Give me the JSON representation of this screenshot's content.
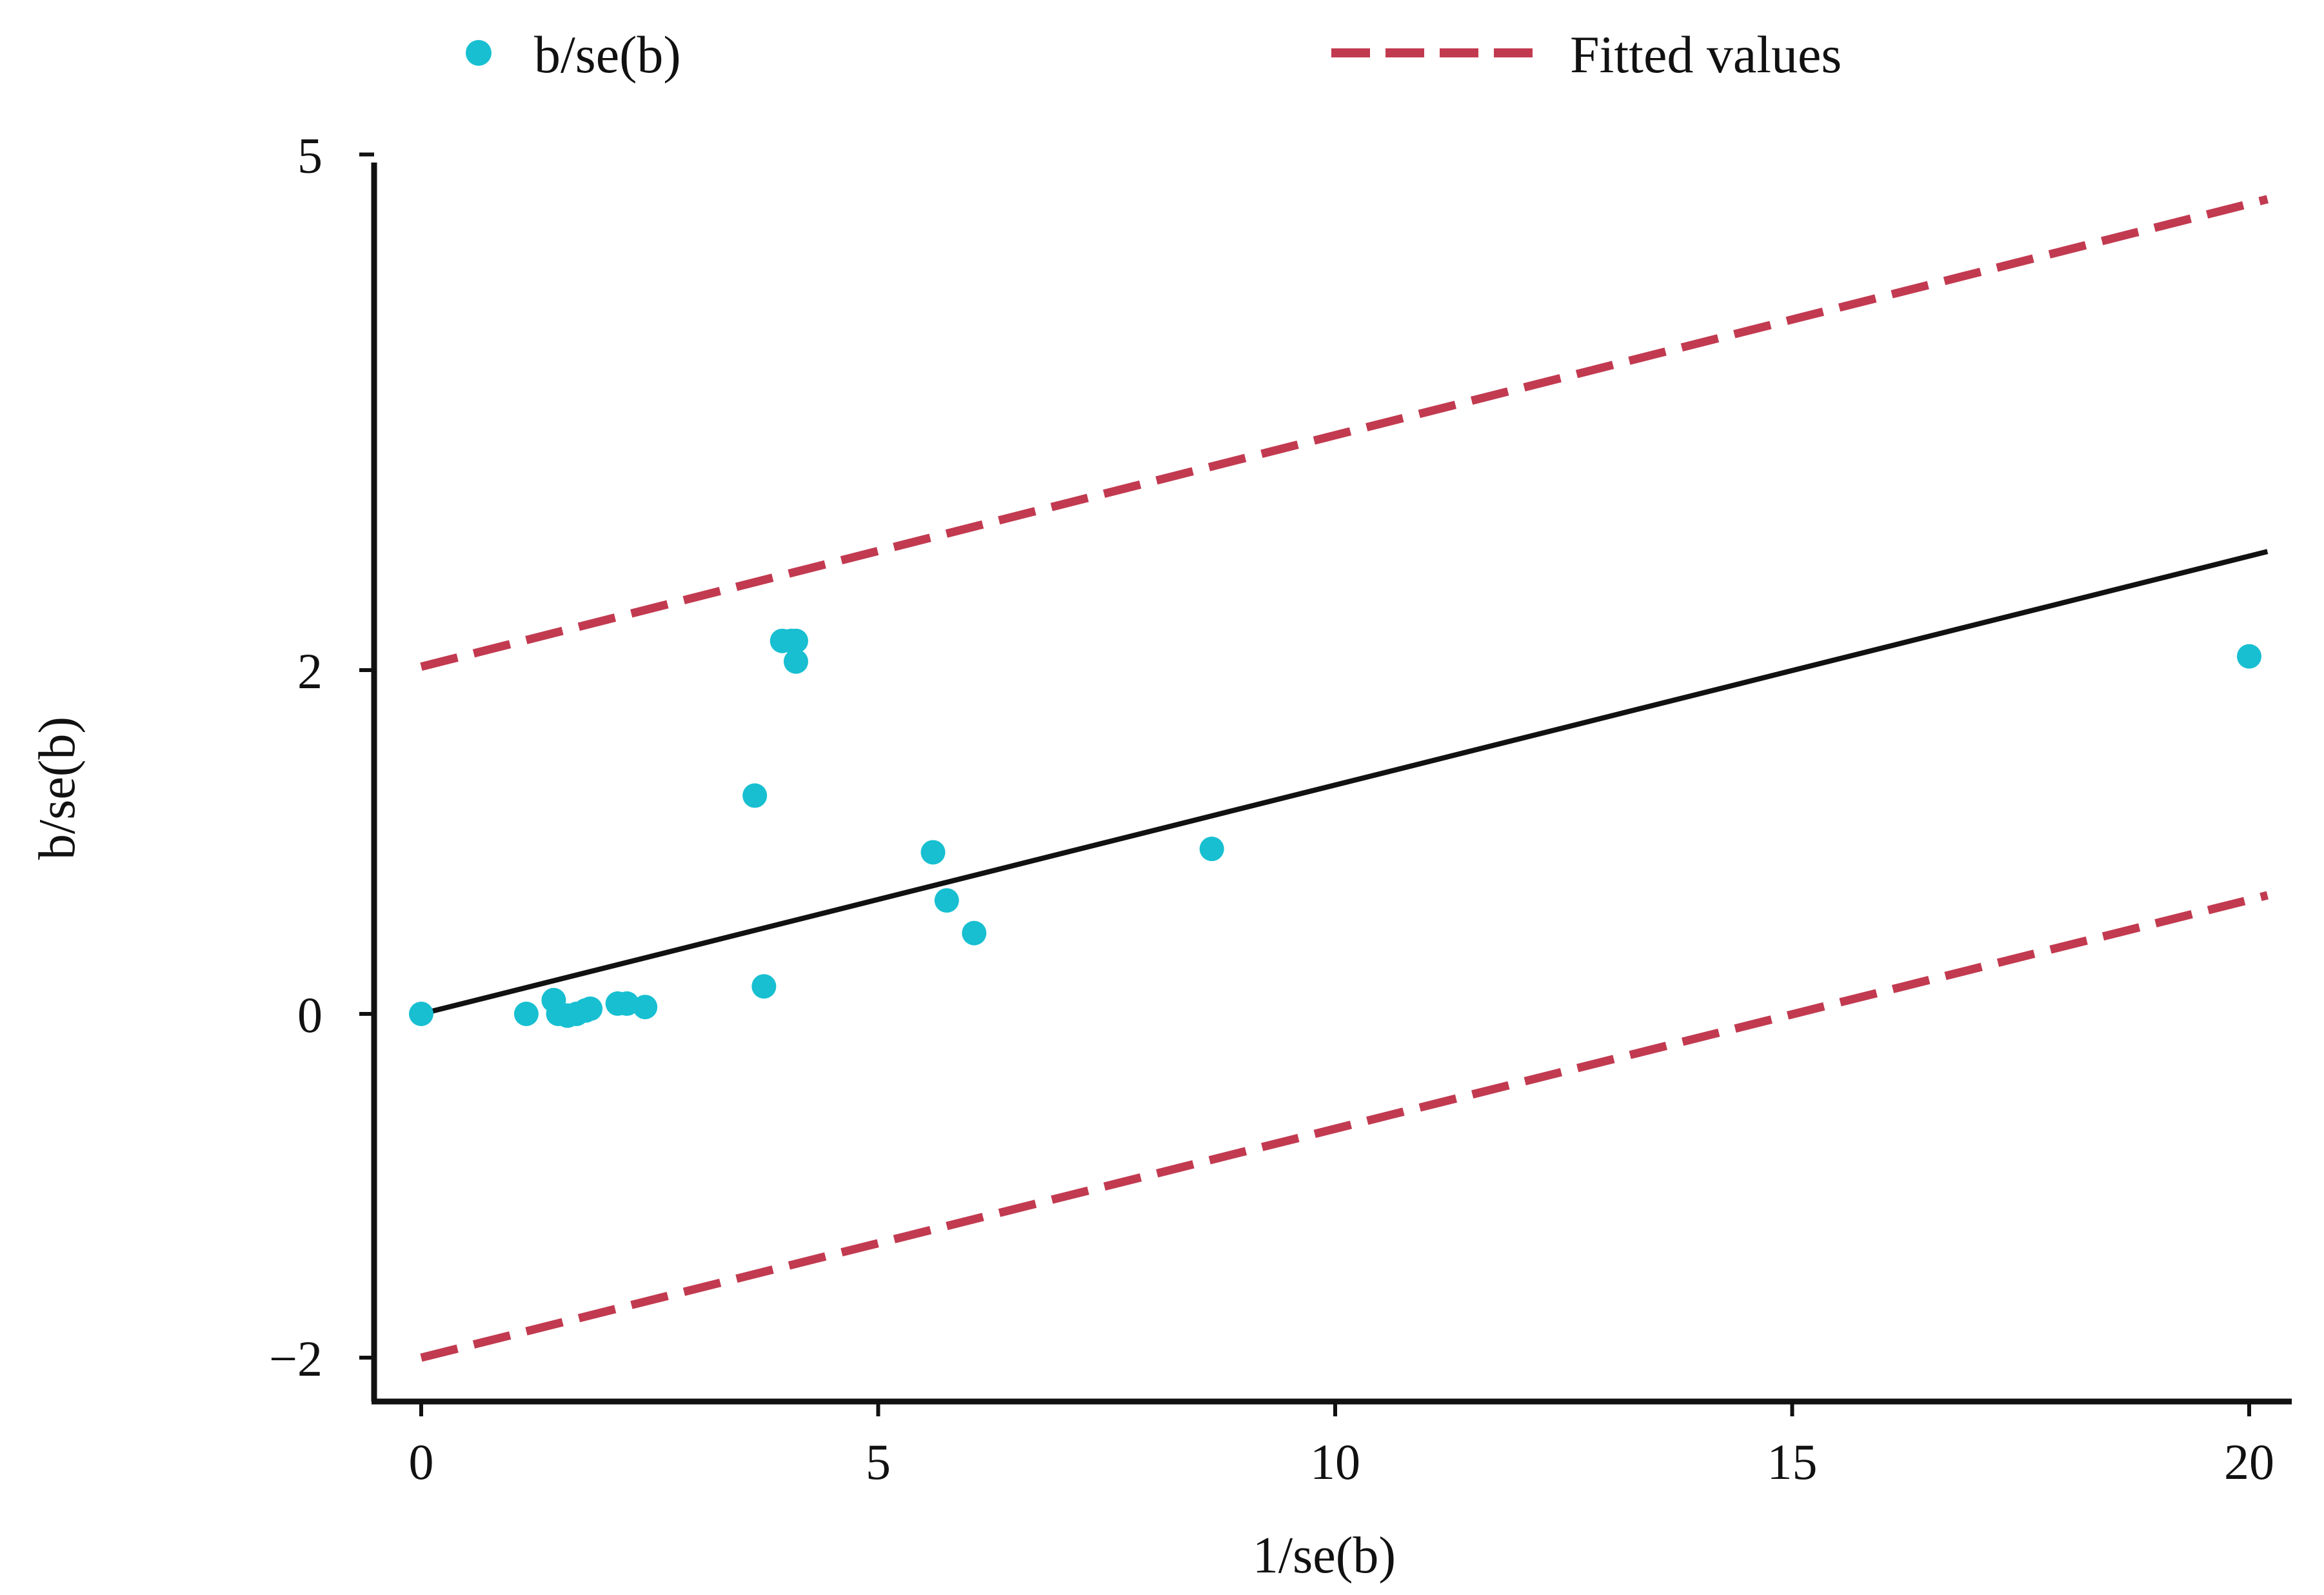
{
  "chart_data": {
    "type": "scatter",
    "title": "",
    "xlabel": "1/se(b)",
    "ylabel": "b/se(b)",
    "xlim": [
      -0.5,
      20.5
    ],
    "ylim": [
      -2.25,
      4.9
    ],
    "x_ticks": [
      0,
      5,
      10,
      15,
      20
    ],
    "y_ticks": [
      -2,
      0,
      2,
      5
    ],
    "x_tick_labels": [
      "0",
      "5",
      "10",
      "15",
      "20"
    ],
    "y_tick_labels": [
      "−2",
      "0",
      "2",
      "5"
    ],
    "legend": {
      "position": "top",
      "entries": [
        {
          "label": "b/se(b)",
          "marker": "dot",
          "color": "#17bfd1"
        },
        {
          "label": "Fitted values",
          "marker": "dashed-line",
          "color": "#c23a50"
        }
      ]
    },
    "series": [
      {
        "name": "b/se(b)",
        "kind": "points",
        "color": "#17bfd1",
        "points": [
          {
            "x": 0.0,
            "y": 0.0
          },
          {
            "x": 1.15,
            "y": 0.0
          },
          {
            "x": 1.45,
            "y": 0.08
          },
          {
            "x": 1.5,
            "y": 0.0
          },
          {
            "x": 1.6,
            "y": -0.01
          },
          {
            "x": 1.7,
            "y": 0.0
          },
          {
            "x": 1.8,
            "y": 0.02
          },
          {
            "x": 1.85,
            "y": 0.03
          },
          {
            "x": 2.15,
            "y": 0.06
          },
          {
            "x": 2.25,
            "y": 0.06
          },
          {
            "x": 2.45,
            "y": 0.04
          },
          {
            "x": 3.65,
            "y": 1.27
          },
          {
            "x": 3.75,
            "y": 0.16
          },
          {
            "x": 3.95,
            "y": 2.17
          },
          {
            "x": 4.05,
            "y": 2.17
          },
          {
            "x": 4.1,
            "y": 2.17
          },
          {
            "x": 4.1,
            "y": 2.05
          },
          {
            "x": 5.6,
            "y": 0.94
          },
          {
            "x": 5.75,
            "y": 0.66
          },
          {
            "x": 6.05,
            "y": 0.47
          },
          {
            "x": 8.65,
            "y": 0.96
          },
          {
            "x": 20.0,
            "y": 2.08
          }
        ]
      },
      {
        "name": "Regression line",
        "kind": "line",
        "style": "solid",
        "color": "#111111",
        "points": [
          {
            "x": 0.0,
            "y": 0.0
          },
          {
            "x": 20.2,
            "y": 2.69
          }
        ]
      },
      {
        "name": "Fitted values (upper)",
        "kind": "line",
        "style": "dashed",
        "color": "#c23a50",
        "points": [
          {
            "x": 0.0,
            "y": 2.02
          },
          {
            "x": 20.2,
            "y": 4.74
          }
        ]
      },
      {
        "name": "Fitted values (lower)",
        "kind": "line",
        "style": "dashed",
        "color": "#c23a50",
        "points": [
          {
            "x": 0.0,
            "y": -2.0
          },
          {
            "x": 20.2,
            "y": 0.69
          }
        ]
      }
    ]
  }
}
